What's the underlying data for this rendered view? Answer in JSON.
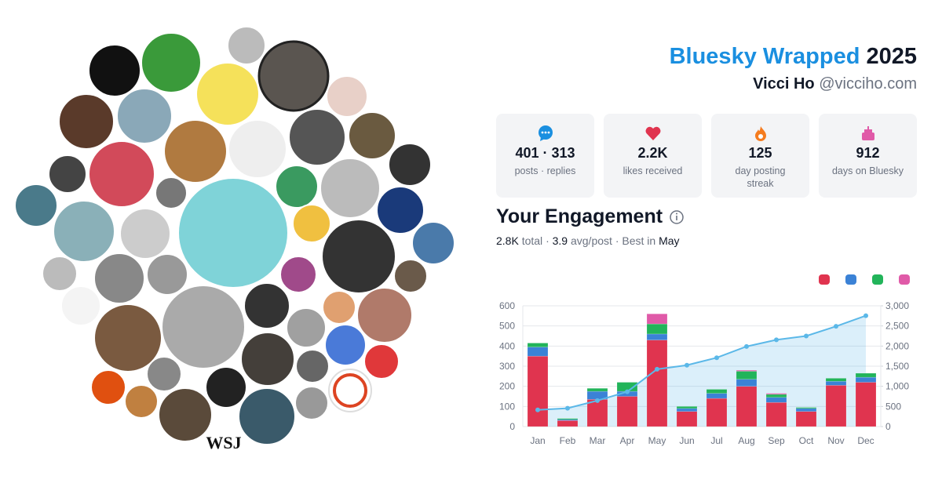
{
  "header": {
    "title": "Bluesky Wrapped",
    "year": "2025",
    "name": "Vicci Ho",
    "handle": "@vicciho.com"
  },
  "bubbles": {
    "logo_text": "WSJ"
  },
  "stats": [
    {
      "value": "401 · 313",
      "label": "posts · replies"
    },
    {
      "value": "2.2K",
      "label": "likes received"
    },
    {
      "value": "125",
      "label": "day posting streak"
    },
    {
      "value": "912",
      "label": "days on Bluesky"
    }
  ],
  "summary": {
    "total": "2.8K",
    "total_label": "total",
    "separator": "·",
    "avg": "3.9",
    "avg_label": "avg/post",
    "best_label": "Best in",
    "best": "May"
  },
  "chart_data": {
    "type": "bar",
    "title": "Your Engagement",
    "stacked": true,
    "legend": "top-right",
    "grid": true,
    "categories": [
      "Jan",
      "Feb",
      "Mar",
      "Apr",
      "May",
      "Jun",
      "Jul",
      "Aug",
      "Sep",
      "Oct",
      "Nov",
      "Dec"
    ],
    "series": [
      {
        "color": "#e0344f",
        "values": [
          350,
          30,
          135,
          150,
          430,
          75,
          140,
          200,
          120,
          75,
          205,
          220
        ]
      },
      {
        "color": "#3b82d6",
        "values": [
          45,
          5,
          40,
          25,
          30,
          15,
          25,
          35,
          25,
          15,
          20,
          25
        ]
      },
      {
        "color": "#22b45a",
        "values": [
          20,
          5,
          15,
          45,
          50,
          10,
          20,
          40,
          15,
          5,
          15,
          20
        ]
      },
      {
        "color": "#e05aa8",
        "values": [
          0,
          0,
          0,
          0,
          50,
          0,
          0,
          5,
          5,
          0,
          0,
          0
        ]
      },
      {
        "type": "line",
        "axis": "y2",
        "color": "#5bb8e8",
        "values": [
          415,
          455,
          645,
          865,
          1425,
          1525,
          1710,
          1990,
          2155,
          2250,
          2490,
          2755
        ]
      }
    ],
    "ylim": [
      0,
      600
    ],
    "yticks": [
      0,
      100,
      200,
      300,
      400,
      500,
      600
    ],
    "y2lim": [
      0,
      3000
    ],
    "y2ticks": [
      0,
      500,
      {
        "value": 1000,
        "label": "1,000"
      },
      {
        "value": 1500,
        "label": "1,500"
      },
      {
        "value": 2000,
        "label": "2,000"
      },
      {
        "value": 2500,
        "label": "2,500"
      },
      {
        "value": 3000,
        "label": "3,000"
      }
    ]
  }
}
